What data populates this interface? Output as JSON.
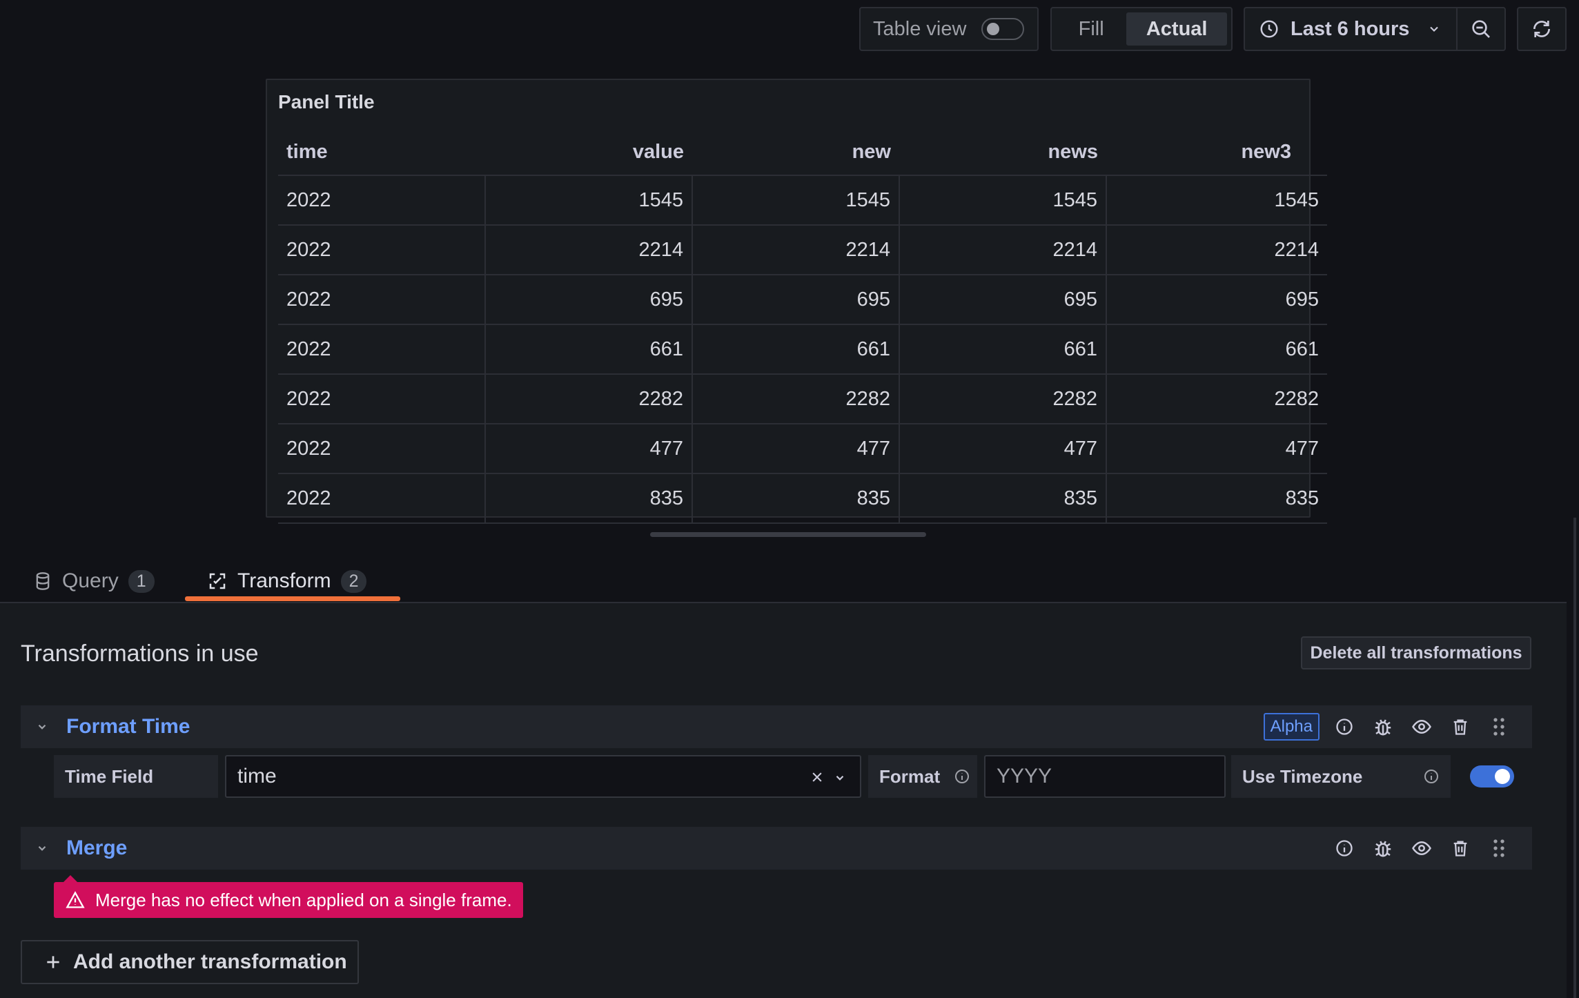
{
  "toolbar": {
    "table_view_label": "Table view",
    "table_view_enabled": false,
    "fill_label": "Fill",
    "actual_label": "Actual",
    "selected_mode": "Actual",
    "time_range": "Last 6 hours",
    "icons": [
      "clock-icon",
      "chevron-down-icon",
      "zoom-out-icon",
      "refresh-icon"
    ]
  },
  "panel": {
    "title": "Panel Title",
    "columns": [
      "time",
      "value",
      "new",
      "news",
      "new3"
    ],
    "rows": [
      [
        "2022",
        "1545",
        "1545",
        "1545",
        "1545"
      ],
      [
        "2022",
        "2214",
        "2214",
        "2214",
        "2214"
      ],
      [
        "2022",
        "695",
        "695",
        "695",
        "695"
      ],
      [
        "2022",
        "661",
        "661",
        "661",
        "661"
      ],
      [
        "2022",
        "2282",
        "2282",
        "2282",
        "2282"
      ],
      [
        "2022",
        "477",
        "477",
        "477",
        "477"
      ],
      [
        "2022",
        "835",
        "835",
        "835",
        "835"
      ]
    ]
  },
  "tabs": [
    {
      "label": "Query",
      "count": "1",
      "icon": "database-icon"
    },
    {
      "label": "Transform",
      "count": "2",
      "icon": "transform-icon",
      "active": true
    }
  ],
  "transformations": {
    "heading": "Transformations in use",
    "delete_all_label": "Delete all transformations",
    "format_time": {
      "title": "Format Time",
      "badge": "Alpha",
      "time_field_label": "Time Field",
      "time_field_value": "time",
      "format_label": "Format",
      "format_value": "YYYY",
      "use_timezone_label": "Use Timezone",
      "use_timezone_enabled": true
    },
    "merge": {
      "title": "Merge",
      "error": "Merge has no effect when applied on a single frame."
    },
    "add_label": "Add another transformation"
  },
  "colors": {
    "accent": "#6e9fff",
    "tab_underline": "#f0703a",
    "error": "#d10e5c",
    "toggle_on": "#3d71d9"
  }
}
